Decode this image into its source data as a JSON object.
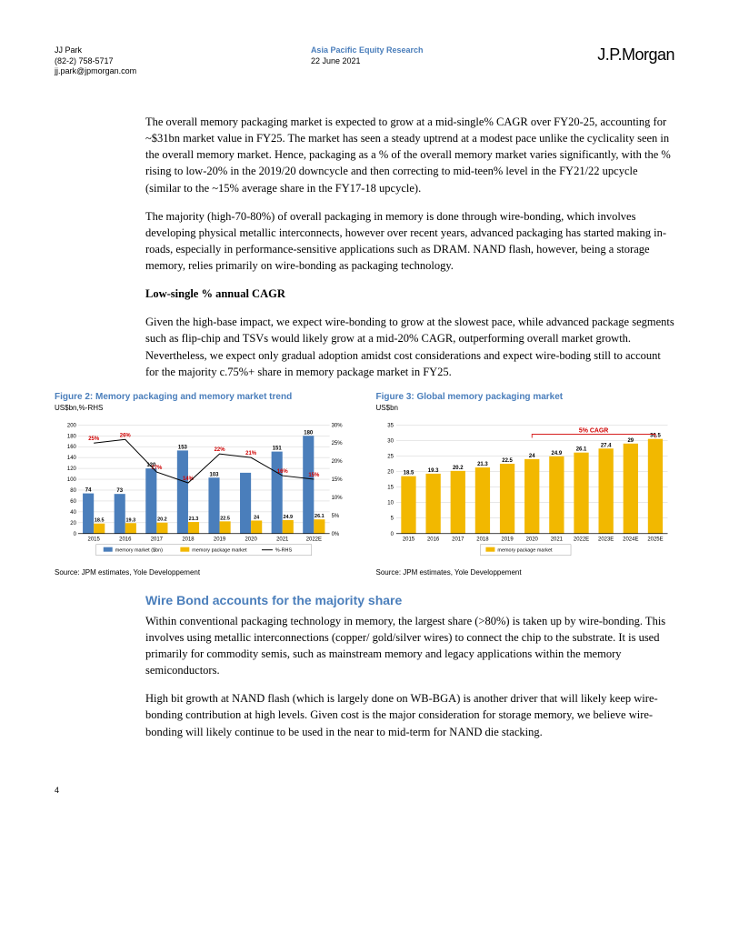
{
  "header": {
    "author": "JJ Park",
    "phone": "(82-2) 758-5717",
    "email": "jj.park@jpmorgan.com",
    "dept": "Asia Pacific Equity Research",
    "date": "22 June 2021",
    "logo": "J.P.Morgan"
  },
  "paragraphs": {
    "p1": "The overall memory packaging market is expected to grow at a mid-single% CAGR over FY20-25, accounting for ~$31bn market value in FY25. The market has seen a steady uptrend at a modest pace unlike the cyclicality seen in the overall memory market. Hence, packaging as a % of the overall memory market varies significantly, with the % rising to low-20% in the 2019/20 downcycle and then correcting to mid-teen% level in the FY21/22 upcycle (similar to the ~15% average share in the FY17-18 upcycle).",
    "p2": "The majority (high-70-80%) of overall packaging in memory is done through wire-bonding, which involves developing physical metallic interconnects, however over recent years, advanced packaging has started making in-roads, especially in performance-sensitive applications such as DRAM. NAND flash, however, being a storage memory, relies primarily on wire-bonding as packaging technology.",
    "h1": "Low-single % annual CAGR",
    "p3": "Given the high-base impact, we expect wire-bonding to grow at the slowest pace, while advanced package segments such as flip-chip and TSVs would likely grow at a mid-20% CAGR, outperforming overall market growth. Nevertheless, we expect only gradual adoption amidst cost considerations and expect wire-boding still to account for the majority c.75%+ share in memory package market in FY25.",
    "h2": "Wire Bond accounts for the majority share",
    "p4": "Within conventional packaging technology in memory, the largest share (>80%) is taken up by wire-bonding. This involves using metallic interconnections (copper/ gold/silver wires) to connect the chip to the substrate. It is used primarily for commodity semis, such as mainstream memory and legacy applications within the memory semiconductors.",
    "p5": "High bit growth at NAND flash (which is largely done on WB-BGA) is another driver that will likely keep wire-bonding contribution at high levels. Given cost is the major consideration for storage memory, we believe wire-bonding will likely continue to be used in the near to mid-term for NAND die stacking."
  },
  "chart1": {
    "title": "Figure 2: Memory packaging and memory market trend",
    "sub": "US$bn,%-RHS",
    "source": "Source: JPM estimates, Yole Developpement",
    "type": "bar+line",
    "years": [
      "2015",
      "2016",
      "2017",
      "2018",
      "2019",
      "2020",
      "2021",
      "2022E"
    ],
    "memory_market": [
      74,
      73,
      120,
      153,
      103,
      112,
      151,
      180
    ],
    "memory_market_labels": [
      "74",
      "73",
      "120",
      "153",
      "103",
      "",
      "151",
      "180"
    ],
    "package_market": [
      18.5,
      19.3,
      20.2,
      21.3,
      22.5,
      24.0,
      24.9,
      26.1
    ],
    "pct_rhs": [
      25,
      26,
      17,
      14,
      22,
      21,
      16,
      15
    ],
    "pct_labels": [
      "25%",
      "26%",
      "17%",
      "14%",
      "22%",
      "21%",
      "16%",
      "15%"
    ],
    "left_ylim": [
      0,
      200
    ],
    "left_ytick_step": 20,
    "right_ylim": [
      0,
      30
    ],
    "right_ytick_step": 5,
    "bar1_color": "#4a7ebb",
    "bar2_color": "#f2b800",
    "line_color": "#000000",
    "pct_label_color": "#d00000",
    "background": "#ffffff",
    "grid_color": "#d0d0d0",
    "legend": [
      "memory market ($bn)",
      "memory package market",
      "%-RHS"
    ],
    "bar_width": 0.35
  },
  "chart2": {
    "title": "Figure 3: Global memory packaging market",
    "sub": "US$bn",
    "source": "Source: JPM estimates, Yole Developpement",
    "type": "bar",
    "years": [
      "2015",
      "2016",
      "2017",
      "2018",
      "2019",
      "2020",
      "2021",
      "2022E",
      "2023E",
      "2024E",
      "2025E"
    ],
    "values": [
      18.5,
      19.3,
      20.2,
      21.3,
      22.5,
      24.0,
      24.9,
      26.1,
      27.4,
      29.0,
      30.5
    ],
    "ylim": [
      0,
      35
    ],
    "ytick_step": 5,
    "bar_color": "#f2b800",
    "cagr_label": "5% CAGR",
    "cagr_color": "#d00000",
    "background": "#ffffff",
    "grid_color": "#d0d0d0",
    "legend": [
      "memory package market"
    ],
    "bar_width": 0.6
  },
  "page_number": "4"
}
